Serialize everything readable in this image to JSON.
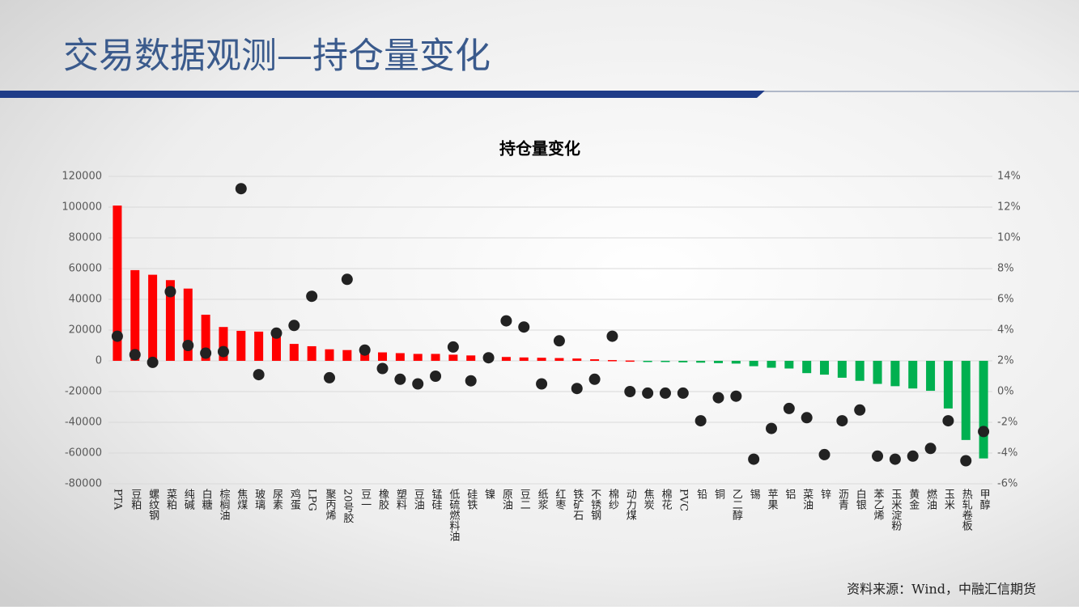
{
  "slide": {
    "title": "交易数据观测—持仓量变化",
    "source": "资料来源：Wind，中融汇信期货"
  },
  "chart_data": {
    "type": "bar_dot",
    "title": "持仓量变化",
    "categories": [
      "PTA",
      "豆粕",
      "螺纹钢",
      "菜粕",
      "纯碱",
      "白糖",
      "棕榈油",
      "焦煤",
      "玻璃",
      "尿素",
      "鸡蛋",
      "LPG",
      "聚丙烯",
      "20号胶",
      "豆一",
      "橡胶",
      "塑料",
      "豆油",
      "锰硅",
      "低硫燃料油",
      "硅铁",
      "镍",
      "原油",
      "豆二",
      "纸浆",
      "红枣",
      "铁矿石",
      "不锈钢",
      "棉纱",
      "动力煤",
      "焦炭",
      "棉花",
      "PVC",
      "铅",
      "铜",
      "乙二醇",
      "锡",
      "苹果",
      "铝",
      "菜油",
      "锌",
      "沥青",
      "白银",
      "苯乙烯",
      "玉米淀粉",
      "黄金",
      "燃油",
      "玉米",
      "热轧卷板",
      "甲醇"
    ],
    "series": [
      {
        "kind": "bar",
        "color": "#ff0000",
        "negative_color": "#00b050",
        "values": [
          101000,
          59000,
          56000,
          52500,
          47000,
          30000,
          22000,
          19500,
          19000,
          17000,
          11000,
          9500,
          7500,
          7000,
          6500,
          5500,
          5000,
          4500,
          4500,
          4000,
          3500,
          3000,
          2500,
          2200,
          2000,
          1800,
          1500,
          1000,
          500,
          200,
          -200,
          -500,
          -1000,
          -1200,
          -1500,
          -1800,
          -3500,
          -4500,
          -5000,
          -8000,
          -9000,
          -11000,
          -13000,
          -15000,
          -16500,
          -18000,
          -19500,
          -31000,
          -51500,
          -63500
        ]
      },
      {
        "kind": "dot",
        "axis": "y2",
        "color": "#222222",
        "values": [
          3.6,
          2.4,
          1.9,
          6.5,
          3.0,
          2.5,
          2.6,
          13.2,
          1.1,
          3.8,
          4.3,
          6.2,
          0.9,
          7.3,
          2.7,
          1.5,
          0.8,
          0.5,
          1.0,
          2.9,
          0.7,
          2.2,
          4.6,
          4.2,
          0.5,
          3.3,
          0.2,
          0.8,
          3.6,
          0,
          -0.1,
          -0.1,
          -0.1,
          -1.9,
          -0.4,
          -0.3,
          -4.4,
          -2.4,
          -1.1,
          -1.7,
          -4.1,
          -1.9,
          -1.2,
          -4.2,
          -4.4,
          -4.2,
          -3.7,
          -1.9,
          -4.5,
          -2.6
        ]
      }
    ],
    "ylim": [
      -80000,
      120000
    ],
    "yticks": [
      -80000,
      -60000,
      -40000,
      -20000,
      0,
      20000,
      40000,
      60000,
      80000,
      100000,
      120000
    ],
    "y2lim": [
      -6,
      14
    ],
    "y2ticks": [
      {
        "value": -6,
        "label": "-6%"
      },
      {
        "value": -4,
        "label": "-4%"
      },
      {
        "value": -2,
        "label": "-2%"
      },
      {
        "value": 0,
        "label": "0%"
      },
      {
        "value": 2,
        "label": "2%"
      },
      {
        "value": 4,
        "label": "4%"
      },
      {
        "value": 6,
        "label": "6%"
      },
      {
        "value": 8,
        "label": "8%"
      },
      {
        "value": 10,
        "label": "10%"
      },
      {
        "value": 12,
        "label": "12%"
      },
      {
        "value": 14,
        "label": "14%"
      }
    ],
    "grid": true
  }
}
